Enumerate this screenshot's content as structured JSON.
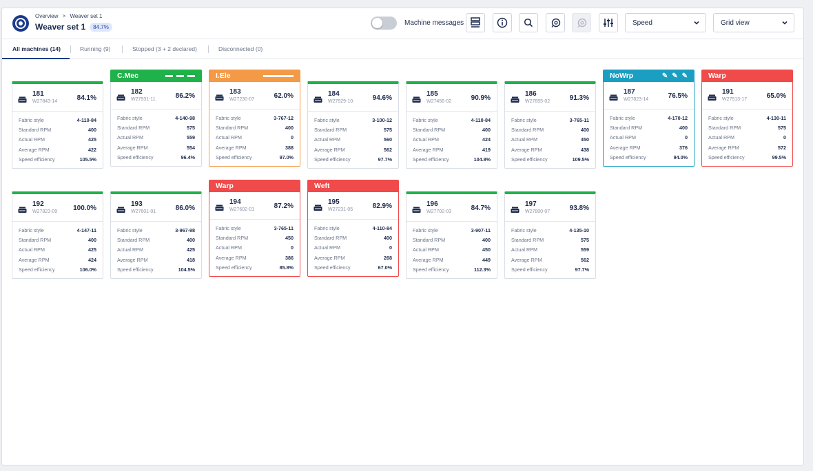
{
  "header": {
    "breadcrumb": [
      "Overview",
      ">",
      "Weaver set 1"
    ],
    "title": "Weaver set 1",
    "title_badge": "84.7%",
    "machine_messages_label": "Machine messages",
    "speed_select": "Speed",
    "view_select": "Grid view"
  },
  "tabs": [
    {
      "label": "All machines (14)"
    },
    {
      "label": "Running (9)"
    },
    {
      "label": "Stopped (3 + 2 declared)"
    },
    {
      "label": "Disconnected (0)"
    }
  ],
  "row_labels": {
    "fabric": "Fabric style",
    "std": "Standard RPM",
    "act": "Actual RPM",
    "avg": "Average RPM",
    "eff": "Speed efficiency"
  },
  "colors": {
    "running": "#1fb24a",
    "mech": "#1fb24a",
    "elec": "#f49a47",
    "nowarp": "#1a9fc2",
    "stop": "#f04a4a",
    "brand": "#1b3a8a"
  },
  "machines": [
    {
      "no": "181",
      "code": "W27843-14",
      "pct": "84.1%",
      "status": "",
      "fabric": "4-110-84",
      "std": "400",
      "act": "425",
      "avg": "422",
      "eff": "105.5%"
    },
    {
      "no": "182",
      "code": "W27931-11",
      "pct": "86.2%",
      "status": "C.Mec",
      "fabric": "4-140-98",
      "std": "575",
      "act": "559",
      "avg": "554",
      "eff": "96.4%"
    },
    {
      "no": "183",
      "code": "W27230-07",
      "pct": "62.0%",
      "status": "I.Ele",
      "fabric": "3-767-12",
      "std": "400",
      "act": "0",
      "avg": "388",
      "eff": "97.0%"
    },
    {
      "no": "184",
      "code": "W27929-10",
      "pct": "94.6%",
      "status": "",
      "fabric": "3-100-12",
      "std": "575",
      "act": "560",
      "avg": "562",
      "eff": "97.7%"
    },
    {
      "no": "185",
      "code": "W27456-02",
      "pct": "90.9%",
      "status": "",
      "fabric": "4-110-84",
      "std": "400",
      "act": "424",
      "avg": "419",
      "eff": "104.8%"
    },
    {
      "no": "186",
      "code": "W27855-02",
      "pct": "91.3%",
      "status": "",
      "fabric": "3-765-11",
      "std": "400",
      "act": "450",
      "avg": "438",
      "eff": "109.5%"
    },
    {
      "no": "187",
      "code": "W27823-14",
      "pct": "76.5%",
      "status": "NoWrp",
      "fabric": "4-170-12",
      "std": "400",
      "act": "0",
      "avg": "376",
      "eff": "94.0%"
    },
    {
      "no": "191",
      "code": "W27513-17",
      "pct": "65.0%",
      "status": "Warp",
      "fabric": "4-130-11",
      "std": "575",
      "act": "0",
      "avg": "572",
      "eff": "99.5%"
    },
    {
      "no": "192",
      "code": "W27823-09",
      "pct": "100.0%",
      "status": "",
      "fabric": "4-147-11",
      "std": "400",
      "act": "425",
      "avg": "424",
      "eff": "106.0%"
    },
    {
      "no": "193",
      "code": "W27601-01",
      "pct": "86.0%",
      "status": "",
      "fabric": "3-967-98",
      "std": "400",
      "act": "425",
      "avg": "418",
      "eff": "104.5%"
    },
    {
      "no": "194",
      "code": "W27602-01",
      "pct": "87.2%",
      "status": "Warp",
      "fabric": "3-765-11",
      "std": "450",
      "act": "0",
      "avg": "386",
      "eff": "85.8%"
    },
    {
      "no": "195",
      "code": "W27231-05",
      "pct": "82.9%",
      "status": "Weft",
      "fabric": "4-110-84",
      "std": "400",
      "act": "0",
      "avg": "268",
      "eff": "67.0%"
    },
    {
      "no": "196",
      "code": "W27702-03",
      "pct": "84.7%",
      "status": "",
      "fabric": "3-907-11",
      "std": "400",
      "act": "450",
      "avg": "449",
      "eff": "112.3%"
    },
    {
      "no": "197",
      "code": "W27800-07",
      "pct": "93.8%",
      "status": "",
      "fabric": "4-135-10",
      "std": "575",
      "act": "559",
      "avg": "562",
      "eff": "97.7%"
    }
  ]
}
